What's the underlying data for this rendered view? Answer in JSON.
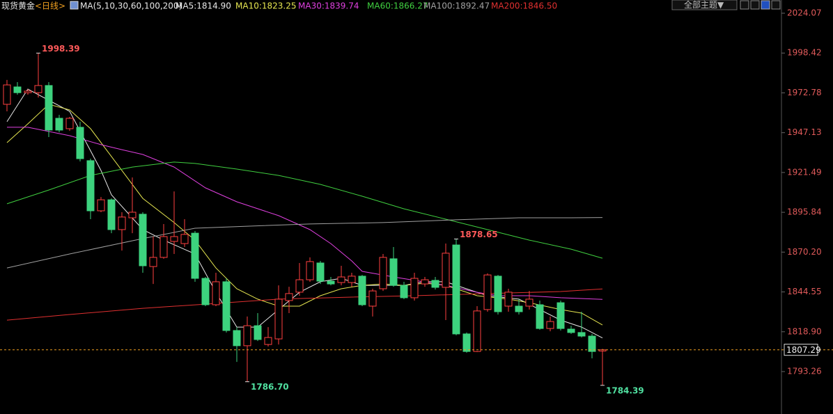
{
  "chart_data": {
    "type": "candlestick",
    "title": "现货黄金",
    "subtitle": "<日线>",
    "indicator": "MA(5,10,30,60,100,200)",
    "theme_button": "全部主题▼",
    "up_color": "#ff4040",
    "down_color": "#3dd27e",
    "ylim": [
      1765.92,
      2032.59
    ],
    "yticks": [
      2024.07,
      1998.42,
      1972.78,
      1947.13,
      1921.49,
      1895.84,
      {
        "value": 1870.2,
        "label": "1870.20"
      },
      1844.55,
      {
        "value": 1818.9,
        "label": "1818.90"
      },
      1793.26
    ],
    "ohlc": [
      [
        1965.4,
        1981.1,
        1960.9,
        1977.9
      ],
      [
        1976.6,
        1979.7,
        1971.6,
        1972.9
      ],
      [
        1972.9,
        1975.2,
        1971.6,
        1973.9
      ],
      [
        1972.9,
        1998.39,
        1969.8,
        1977.5
      ],
      [
        1977.5,
        1979.7,
        1944.3,
        1948.8
      ],
      [
        1956.4,
        1958.6,
        1947.4,
        1948.8
      ],
      [
        1949.7,
        1957.3,
        1948.3,
        1956.4
      ],
      [
        1950.6,
        1954.2,
        1928.6,
        1930.4
      ],
      [
        1929.1,
        1930.4,
        1891.4,
        1896.8
      ],
      [
        1896.8,
        1905.7,
        1895.9,
        1903.9
      ],
      [
        1903.9,
        1904.8,
        1882.4,
        1884.7
      ],
      [
        1884.7,
        1895.9,
        1871.2,
        1892.8
      ],
      [
        1892.3,
        1918.3,
        1882.4,
        1895.9
      ],
      [
        1894.6,
        1895.9,
        1856.9,
        1861.4
      ],
      [
        1860.9,
        1880.2,
        1849.7,
        1866.8
      ],
      [
        1866.8,
        1888.3,
        1865.9,
        1880.2
      ],
      [
        1877.1,
        1909.3,
        1869.0,
        1880.2
      ],
      [
        1875.7,
        1891.4,
        1873.5,
        1881.6
      ],
      [
        1882.4,
        1883.8,
        1851.1,
        1853.3
      ],
      [
        1853.3,
        1854.2,
        1835.4,
        1836.3
      ],
      [
        1836.3,
        1856.9,
        1835.4,
        1851.1
      ],
      [
        1851.1,
        1853.3,
        1818.4,
        1819.7
      ],
      [
        1819.7,
        1821.9,
        1799.5,
        1809.9
      ],
      [
        1809.9,
        1828.7,
        1786.7,
        1822.8
      ],
      [
        1822.8,
        1830.9,
        1812.9,
        1813.9
      ],
      [
        1810.7,
        1821.9,
        1809.4,
        1815.2
      ],
      [
        1814.3,
        1848.8,
        1810.7,
        1839.9
      ],
      [
        1839.0,
        1847.9,
        1830.9,
        1843.5
      ],
      [
        1844.4,
        1863.2,
        1842.1,
        1852.4
      ],
      [
        1852.4,
        1866.8,
        1851.1,
        1864.1
      ],
      [
        1863.2,
        1864.5,
        1849.7,
        1851.5
      ],
      [
        1851.5,
        1854.2,
        1848.8,
        1849.7
      ],
      [
        1850.6,
        1861.4,
        1848.8,
        1854.2
      ],
      [
        1850.6,
        1856.9,
        1847.9,
        1854.7
      ],
      [
        1854.7,
        1855.5,
        1835.4,
        1836.3
      ],
      [
        1835.4,
        1846.6,
        1828.7,
        1845.2
      ],
      [
        1846.6,
        1869.0,
        1845.2,
        1866.8
      ],
      [
        1865.9,
        1873.5,
        1847.9,
        1848.8
      ],
      [
        1848.8,
        1851.1,
        1839.9,
        1840.8
      ],
      [
        1840.8,
        1856.9,
        1839.0,
        1853.3
      ],
      [
        1849.7,
        1854.2,
        1847.9,
        1852.4
      ],
      [
        1852.0,
        1854.2,
        1846.1,
        1847.5
      ],
      [
        1847.5,
        1875.7,
        1826.4,
        1869.5
      ],
      [
        1874.8,
        1878.65,
        1816.6,
        1817.5
      ],
      [
        1817.5,
        1818.4,
        1805.4,
        1806.2
      ],
      [
        1806.2,
        1835.4,
        1805.8,
        1832.3
      ],
      [
        1833.2,
        1856.5,
        1831.8,
        1855.5
      ],
      [
        1854.7,
        1855.5,
        1830.0,
        1831.8
      ],
      [
        1835.4,
        1846.6,
        1831.8,
        1844.4
      ],
      [
        1835.4,
        1839.9,
        1830.0,
        1831.8
      ],
      [
        1835.4,
        1845.2,
        1833.2,
        1839.9
      ],
      [
        1836.3,
        1839.0,
        1820.2,
        1821.0
      ],
      [
        1821.0,
        1828.7,
        1819.2,
        1825.5
      ],
      [
        1837.6,
        1839.0,
        1819.7,
        1821.0
      ],
      [
        1820.6,
        1822.8,
        1817.5,
        1818.4
      ],
      [
        1818.4,
        1831.8,
        1815.2,
        1816.1
      ],
      [
        1816.1,
        1817.5,
        1801.8,
        1806.2
      ],
      [
        1806.5,
        1807.9,
        1784.39,
        1807.29
      ]
    ],
    "series": [
      {
        "name": "MA5:1814.90",
        "color": "#e8e8e8",
        "x": [
          0,
          2,
          6,
          9,
          10,
          13,
          15,
          18,
          20,
          22,
          24,
          26,
          28,
          30,
          32,
          34,
          36,
          38,
          40,
          42,
          43,
          45,
          46,
          49,
          51,
          53,
          55,
          57
        ],
        "values": [
          1954.2,
          1975.2,
          1960.9,
          1922.8,
          1907.1,
          1884.7,
          1877.9,
          1869.0,
          1844.3,
          1821.9,
          1821.9,
          1833.2,
          1844.3,
          1851.1,
          1853.3,
          1848.8,
          1848.8,
          1848.8,
          1851.1,
          1851.1,
          1848.8,
          1844.3,
          1842.1,
          1839.9,
          1833.2,
          1826.4,
          1821.9,
          1814.9
        ]
      },
      {
        "name": "MA10:1823.25",
        "color": "#e6e650",
        "x": [
          0,
          2,
          4,
          6,
          8,
          10,
          13,
          16,
          18,
          20,
          22,
          24,
          26,
          28,
          30,
          32,
          34,
          36,
          38,
          40,
          42,
          45,
          48,
          50,
          53,
          55,
          57
        ],
        "values": [
          1940.7,
          1952.8,
          1965.4,
          1961.8,
          1949.7,
          1931.8,
          1904.8,
          1889.2,
          1877.9,
          1860.0,
          1846.6,
          1839.9,
          1835.4,
          1835.4,
          1842.1,
          1846.6,
          1848.8,
          1849.7,
          1848.8,
          1850.2,
          1848.8,
          1842.1,
          1839.9,
          1837.6,
          1833.2,
          1830.9,
          1823.25
        ]
      },
      {
        "name": "MA30:1839.74",
        "color": "#e040e0",
        "x": [
          0,
          2,
          6,
          9,
          11,
          13,
          16,
          19,
          22,
          26,
          29,
          31,
          33,
          34,
          37,
          39,
          42,
          45,
          47,
          50,
          53,
          57
        ],
        "values": [
          1950.6,
          1950.6,
          1945.2,
          1939.4,
          1936.2,
          1933.1,
          1925.0,
          1911.6,
          1902.6,
          1893.7,
          1884.7,
          1875.7,
          1864.5,
          1857.8,
          1854.2,
          1852.0,
          1848.8,
          1844.3,
          1842.1,
          1842.1,
          1840.8,
          1839.74
        ]
      },
      {
        "name": "MA60:1866.27",
        "color": "#40d040",
        "x": [
          0,
          4,
          8,
          12,
          16,
          18,
          22,
          26,
          30,
          34,
          38,
          42,
          46,
          50,
          54,
          57
        ],
        "values": [
          1901.3,
          1910.2,
          1919.6,
          1925.0,
          1928.2,
          1927.3,
          1923.7,
          1919.6,
          1913.8,
          1906.2,
          1898.1,
          1891.4,
          1884.7,
          1877.9,
          1872.1,
          1866.27
        ]
      },
      {
        "name": "MA100:1892.47",
        "color": "#a0a0a0",
        "x": [
          0,
          6,
          13,
          18,
          23,
          29,
          36,
          43,
          49,
          54,
          57
        ],
        "values": [
          1860.0,
          1869.0,
          1878.9,
          1885.6,
          1886.9,
          1888.3,
          1889.2,
          1891.0,
          1892.3,
          1892.3,
          1892.47
        ]
      },
      {
        "name": "MA200:1846.50",
        "color": "#e03030",
        "x": [
          0,
          6,
          13,
          19,
          26,
          33,
          39,
          46,
          53,
          57
        ],
        "values": [
          1826.4,
          1830.0,
          1834.0,
          1836.7,
          1839.9,
          1841.2,
          1842.1,
          1843.5,
          1844.8,
          1846.5
        ]
      }
    ],
    "annotations": [
      {
        "value": 1998.39,
        "label": "1998.39"
      },
      {
        "value": 1786.7,
        "label": "1786.70"
      },
      {
        "value": 1878.65,
        "label": "1878.65"
      },
      {
        "value": 1784.39,
        "label": "1784.39"
      }
    ],
    "last_price": {
      "value": 1807.29,
      "label": "1807.29"
    }
  }
}
